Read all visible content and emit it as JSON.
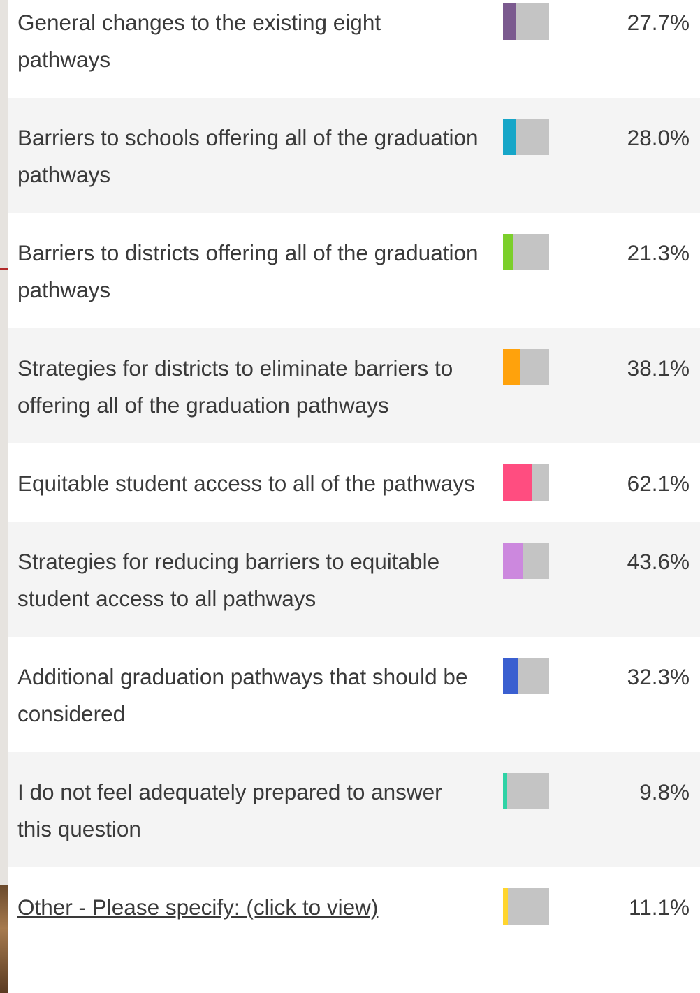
{
  "chart_data": {
    "type": "bar",
    "categories": [
      "General changes to the existing eight pathways",
      "Barriers to schools offering all of the graduation pathways",
      "Barriers to districts offering all of the graduation pathways",
      "Strategies for districts to eliminate barriers to offering all of the graduation pathways",
      "Equitable student access to all of the pathways",
      "Strategies for reducing barriers to equitable student access to all pathways",
      "Additional graduation pathways that should be considered",
      "I do not feel adequately prepared to answer this question",
      "Other - Please specify: (click to view)"
    ],
    "values": [
      27.7,
      28.0,
      21.3,
      38.1,
      62.1,
      43.6,
      32.3,
      9.8,
      11.1
    ],
    "value_labels": [
      "27.7%",
      "28.0%",
      "21.3%",
      "38.1%",
      "62.1%",
      "43.6%",
      "32.3%",
      "9.8%",
      "11.1%"
    ],
    "colors": [
      "#7b5a8f",
      "#17a6c8",
      "#7ccf2b",
      "#ffa20c",
      "#ff4d80",
      "#cc88de",
      "#3a5fd0",
      "#2fd3a6",
      "#ffd52e"
    ],
    "xlim": [
      0,
      100
    ]
  }
}
